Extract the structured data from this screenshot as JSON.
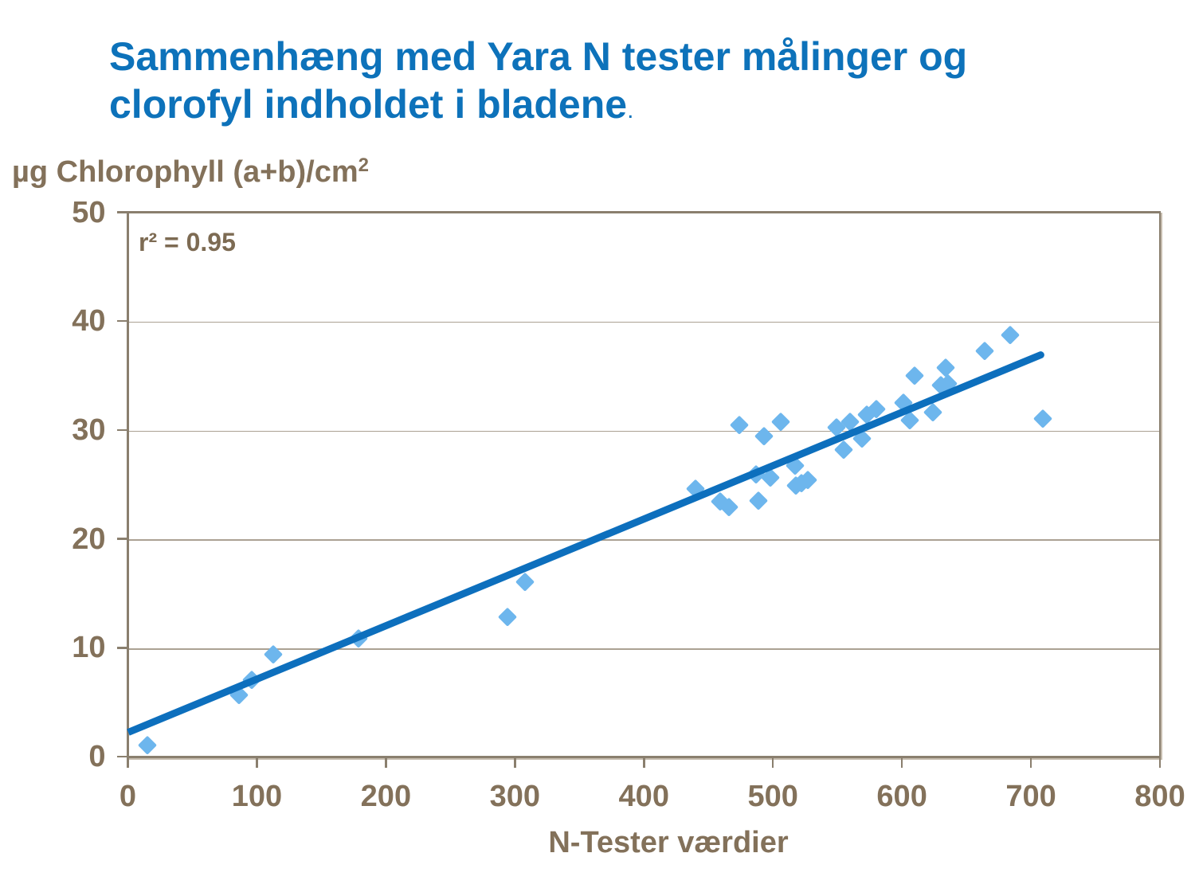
{
  "title": {
    "line1": "Sammenhæng med Yara N tester målinger og",
    "line2": "clorofyl indholdet i bladene",
    "period": "."
  },
  "chart_data": {
    "type": "scatter",
    "title": "Sammenhæng med Yara N tester målinger og clorofyl indholdet i bladene.",
    "xlabel": "N-Tester værdier",
    "ylabel": "µg Chlorophyll (a+b)/cm²",
    "ylabel_base": "µg Chlorophyll (a+b)/cm",
    "ylabel_superscript": "2",
    "annotation": "r² = 0.95",
    "xlim": [
      0,
      800
    ],
    "ylim": [
      0,
      50
    ],
    "x_ticks": [
      0,
      100,
      200,
      300,
      400,
      500,
      600,
      700,
      800
    ],
    "y_ticks": [
      0,
      10,
      20,
      30,
      40,
      50
    ],
    "grid": "horizontal",
    "legend": "none",
    "marker": "diamond",
    "points": [
      [
        15,
        1.0
      ],
      [
        86,
        5.6
      ],
      [
        96,
        7.0
      ],
      [
        113,
        9.4
      ],
      [
        179,
        10.8
      ],
      [
        294,
        12.8
      ],
      [
        308,
        16.0
      ],
      [
        440,
        24.6
      ],
      [
        459,
        23.4
      ],
      [
        466,
        22.9
      ],
      [
        474,
        30.4
      ],
      [
        487,
        25.9
      ],
      [
        489,
        23.5
      ],
      [
        493,
        29.4
      ],
      [
        498,
        25.6
      ],
      [
        506,
        30.7
      ],
      [
        517,
        26.7
      ],
      [
        518,
        24.9
      ],
      [
        522,
        25.1
      ],
      [
        527,
        25.4
      ],
      [
        549,
        30.2
      ],
      [
        555,
        28.2
      ],
      [
        560,
        30.7
      ],
      [
        569,
        29.2
      ],
      [
        573,
        31.4
      ],
      [
        580,
        31.9
      ],
      [
        601,
        32.5
      ],
      [
        606,
        30.9
      ],
      [
        610,
        35.0
      ],
      [
        624,
        31.6
      ],
      [
        630,
        34.1
      ],
      [
        636,
        34.2
      ],
      [
        634,
        35.7
      ],
      [
        664,
        37.2
      ],
      [
        684,
        38.7
      ],
      [
        709,
        31.0
      ]
    ],
    "trendline": {
      "x_start": 0,
      "y_start": 2.2,
      "x_end": 710,
      "y_end": 37.0
    }
  },
  "colors": {
    "title_text": "#0e72b8",
    "marker_fill": "#6db6ed",
    "trendline": "#0d6fbd",
    "axis_line": "#8a7f6e",
    "axis_shadow": "#bcb3a5",
    "gridline": "#aba193",
    "axis_text": "#83715a",
    "background": "#ffffff"
  }
}
